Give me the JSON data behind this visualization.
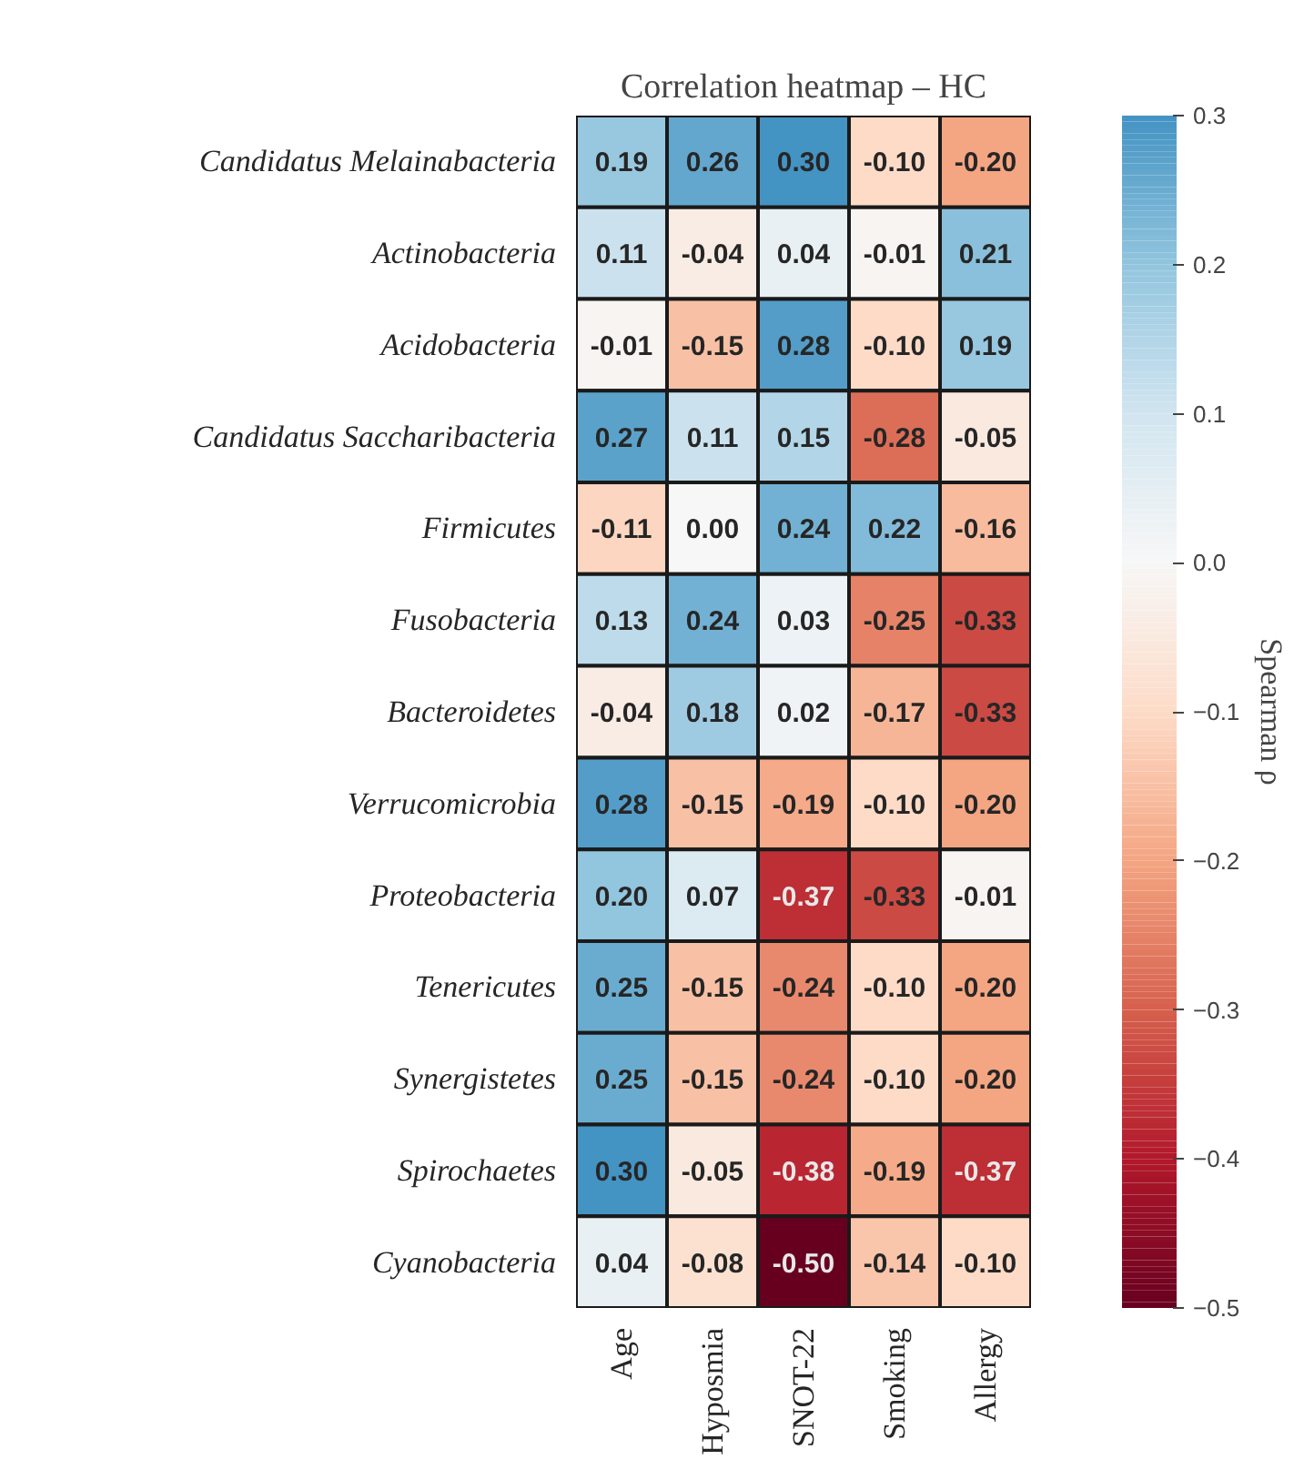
{
  "chart_data": {
    "type": "heatmap",
    "title": "Correlation heatmap – HC",
    "clabel": "Spearman ρ",
    "categories": [
      "Age",
      "Hyposmia",
      "SNOT-22",
      "Smoking",
      "Allergy"
    ],
    "y_categories": [
      "Candidatus Melainabacteria",
      "Actinobacteria",
      "Acidobacteria",
      "Candidatus Saccharibacteria",
      "Firmicutes",
      "Fusobacteria",
      "Bacteroidetes",
      "Verrucomicrobia",
      "Proteobacteria",
      "Tenericutes",
      "Synergistetes",
      "Spirochaetes",
      "Cyanobacteria"
    ],
    "cells": [
      [
        0.19,
        0.26,
        0.3,
        -0.1,
        -0.2
      ],
      [
        0.11,
        -0.04,
        0.04,
        -0.01,
        0.21
      ],
      [
        -0.01,
        -0.15,
        0.28,
        -0.1,
        0.19
      ],
      [
        0.27,
        0.11,
        0.15,
        -0.28,
        -0.05
      ],
      [
        -0.11,
        0.0,
        0.24,
        0.22,
        -0.16
      ],
      [
        0.13,
        0.24,
        0.03,
        -0.25,
        -0.33
      ],
      [
        -0.04,
        0.18,
        0.02,
        -0.17,
        -0.33
      ],
      [
        0.28,
        -0.15,
        -0.19,
        -0.1,
        -0.2
      ],
      [
        0.2,
        0.07,
        -0.37,
        -0.33,
        -0.01
      ],
      [
        0.25,
        -0.15,
        -0.24,
        -0.1,
        -0.2
      ],
      [
        0.25,
        -0.15,
        -0.24,
        -0.1,
        -0.2
      ],
      [
        0.3,
        -0.05,
        -0.38,
        -0.19,
        -0.37
      ],
      [
        0.04,
        -0.08,
        -0.5,
        -0.14,
        -0.1
      ]
    ],
    "cell_labels": [
      [
        "0.19",
        "0.26",
        "0.30",
        "-0.10",
        "-0.20"
      ],
      [
        "0.11",
        "-0.04",
        "0.04",
        "-0.01",
        "0.21"
      ],
      [
        "-0.01",
        "-0.15",
        "0.28",
        "-0.10",
        "0.19"
      ],
      [
        "0.27",
        "0.11",
        "0.15",
        "-0.28",
        "-0.05"
      ],
      [
        "-0.11",
        "0.00",
        "0.24",
        "0.22",
        "-0.16"
      ],
      [
        "0.13",
        "0.24",
        "0.03",
        "-0.25",
        "-0.33"
      ],
      [
        "-0.04",
        "0.18",
        "0.02",
        "-0.17",
        "-0.33"
      ],
      [
        "0.28",
        "-0.15",
        "-0.19",
        "-0.10",
        "-0.20"
      ],
      [
        "0.20",
        "0.07",
        "-0.37",
        "-0.33",
        "-0.01"
      ],
      [
        "0.25",
        "-0.15",
        "-0.24",
        "-0.10",
        "-0.20"
      ],
      [
        "0.25",
        "-0.15",
        "-0.24",
        "-0.10",
        "-0.20"
      ],
      [
        "0.30",
        "-0.05",
        "-0.38",
        "-0.19",
        "-0.37"
      ],
      [
        "0.04",
        "-0.08",
        "-0.50",
        "-0.14",
        "-0.10"
      ]
    ],
    "clim": [
      -0.5,
      0.3
    ],
    "cticks": [
      {
        "value": 0.3,
        "label": "0.3"
      },
      {
        "value": 0.2,
        "label": "0.2"
      },
      {
        "value": 0.1,
        "label": "0.1"
      },
      {
        "value": 0.0,
        "label": "0.0"
      },
      {
        "value": -0.1,
        "label": "−0.1"
      },
      {
        "value": -0.2,
        "label": "−0.2"
      },
      {
        "value": -0.3,
        "label": "−0.3"
      },
      {
        "value": -0.4,
        "label": "−0.4"
      },
      {
        "value": -0.5,
        "label": "−0.5"
      }
    ]
  }
}
